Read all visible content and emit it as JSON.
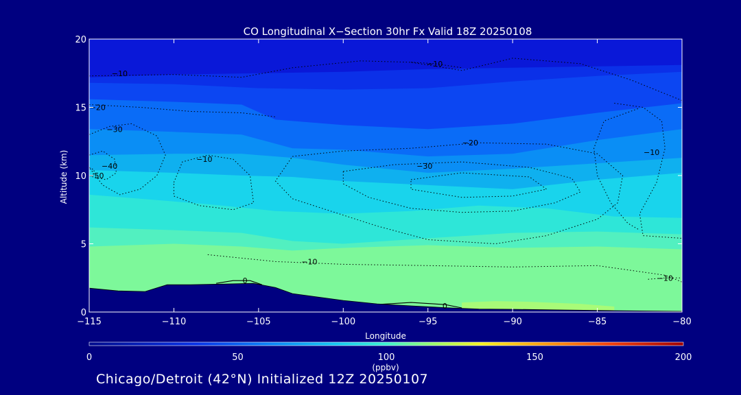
{
  "chart_data": {
    "type": "heatmap",
    "title": "CO Longitudinal X−Section 30hr  Fx Valid 18Z 20250108",
    "xlabel": "Longitude",
    "ylabel": "Altitude (km)",
    "xlim": [
      -115,
      -80
    ],
    "ylim": [
      0,
      20
    ],
    "x_ticks": [
      "−115",
      "−110",
      "−105",
      "−100",
      "−95",
      "−90",
      "−85",
      "−80"
    ],
    "y_ticks": [
      "0",
      "5",
      "10",
      "15",
      "20"
    ],
    "colorbar": {
      "label": "(ppbv)",
      "min": 0,
      "max": 200,
      "ticks": [
        "0",
        "50",
        "100",
        "150",
        "200"
      ]
    },
    "fill_layers": [
      {
        "color": "#0a18d8",
        "value": 35,
        "top": [
          [
            -115,
            20
          ],
          [
            -80,
            20
          ]
        ]
      },
      {
        "color": "#0b30e8",
        "value": 45,
        "top": [
          [
            -115,
            17.2
          ],
          [
            -110,
            17.4
          ],
          [
            -105,
            17.5
          ],
          [
            -100,
            17.6
          ],
          [
            -95,
            17.8
          ],
          [
            -90,
            17.9
          ],
          [
            -85,
            18.0
          ],
          [
            -80,
            18.1
          ]
        ]
      },
      {
        "color": "#0c46f2",
        "value": 55,
        "top": [
          [
            -115,
            16.8
          ],
          [
            -110,
            16.7
          ],
          [
            -105,
            16.4
          ],
          [
            -100,
            16.3
          ],
          [
            -95,
            16.4
          ],
          [
            -90,
            16.9
          ],
          [
            -85,
            17.3
          ],
          [
            -80,
            17.6
          ]
        ]
      },
      {
        "color": "#0a6cf7",
        "value": 65,
        "top": [
          [
            -115,
            15.6
          ],
          [
            -110,
            15.4
          ],
          [
            -106,
            15.2
          ],
          [
            -104,
            14.1
          ],
          [
            -100,
            13.7
          ],
          [
            -95,
            13.4
          ],
          [
            -90,
            13.8
          ],
          [
            -85,
            14.6
          ],
          [
            -80,
            15.3
          ]
        ]
      },
      {
        "color": "#0a8ef5",
        "value": 72,
        "top": [
          [
            -115,
            13.4
          ],
          [
            -110,
            13.2
          ],
          [
            -106,
            13.0
          ],
          [
            -103,
            12.0
          ],
          [
            -100,
            11.9
          ],
          [
            -95,
            11.4
          ],
          [
            -90,
            11.6
          ],
          [
            -85,
            12.6
          ],
          [
            -80,
            13.4
          ]
        ]
      },
      {
        "color": "#0fb0ef",
        "value": 80,
        "top": [
          [
            -115,
            11.5
          ],
          [
            -110,
            11.6
          ],
          [
            -106,
            11.6
          ],
          [
            -103,
            11.3
          ],
          [
            -100,
            10.8
          ],
          [
            -95,
            10.2
          ],
          [
            -90,
            10.5
          ],
          [
            -85,
            10.9
          ],
          [
            -80,
            11.3
          ]
        ]
      },
      {
        "color": "#19d4ec",
        "value": 88,
        "top": [
          [
            -115,
            10.4
          ],
          [
            -110,
            10.2
          ],
          [
            -106,
            10.0
          ],
          [
            -103,
            9.9
          ],
          [
            -100,
            9.6
          ],
          [
            -95,
            9.3
          ],
          [
            -90,
            9.0
          ],
          [
            -85,
            9.7
          ],
          [
            -80,
            10.2
          ]
        ]
      },
      {
        "color": "#2ee6d8",
        "value": 92,
        "top": [
          [
            -115,
            8.6
          ],
          [
            -111,
            8.2
          ],
          [
            -108,
            7.9
          ],
          [
            -104,
            7.4
          ],
          [
            -100,
            7.2
          ],
          [
            -96,
            7.4
          ],
          [
            -92,
            7.8
          ],
          [
            -88,
            7.6
          ],
          [
            -84,
            7.0
          ],
          [
            -80,
            6.9
          ]
        ]
      },
      {
        "color": "#52f0c0",
        "value": 97,
        "top": [
          [
            -115,
            6.2
          ],
          [
            -110,
            6.0
          ],
          [
            -106,
            5.8
          ],
          [
            -103,
            5.2
          ],
          [
            -100,
            5.0
          ],
          [
            -95,
            5.4
          ],
          [
            -90,
            5.8
          ],
          [
            -85,
            5.9
          ],
          [
            -80,
            5.7
          ]
        ]
      },
      {
        "color": "#7df89a",
        "value": 102,
        "top": [
          [
            -115,
            4.8
          ],
          [
            -110,
            5.0
          ],
          [
            -106,
            4.8
          ],
          [
            -103,
            4.5
          ],
          [
            -100,
            4.7
          ],
          [
            -95,
            4.9
          ],
          [
            -90,
            4.7
          ],
          [
            -85,
            4.8
          ],
          [
            -80,
            4.6
          ]
        ]
      },
      {
        "color": "#a8fb78",
        "value": 108,
        "top": [
          [
            -93,
            0.7
          ],
          [
            -91,
            0.8
          ],
          [
            -89,
            0.75
          ],
          [
            -86,
            0.6
          ],
          [
            -84,
            0.4
          ],
          [
            -84,
            0
          ],
          [
            -93,
            0
          ]
        ]
      }
    ],
    "terrain": [
      [
        -115,
        1.75
      ],
      [
        -113.3,
        1.55
      ],
      [
        -111.7,
        1.5
      ],
      [
        -110.4,
        2.0
      ],
      [
        -109,
        2.0
      ],
      [
        -107,
        2.05
      ],
      [
        -105.3,
        2.1
      ],
      [
        -104,
        1.8
      ],
      [
        -103,
        1.35
      ],
      [
        -101.5,
        1.1
      ],
      [
        -100,
        0.85
      ],
      [
        -98,
        0.6
      ],
      [
        -96,
        0.45
      ],
      [
        -94,
        0.32
      ],
      [
        -92,
        0.22
      ],
      [
        -90,
        0.2
      ],
      [
        -87,
        0.15
      ],
      [
        -84,
        0.1
      ],
      [
        -80,
        0.05
      ]
    ],
    "contours": [
      {
        "label": "−10",
        "label_at": [
          -113.2,
          17.5
        ],
        "points": [
          [
            -115,
            17.3
          ],
          [
            -110,
            17.4
          ],
          [
            -106,
            17.2
          ],
          [
            -103,
            17.9
          ],
          [
            -99,
            18.4
          ],
          [
            -96,
            18.3
          ],
          [
            -93,
            17.7
          ],
          [
            -90,
            18.6
          ],
          [
            -86,
            18.2
          ],
          [
            -83,
            17.0
          ],
          [
            -80,
            15.5
          ]
        ]
      },
      {
        "label": "−10",
        "label_at": [
          -94.6,
          18.2
        ],
        "points": [
          [
            -96,
            18.3
          ],
          [
            -94.6,
            18.2
          ],
          [
            -93,
            17.9
          ]
        ]
      },
      {
        "label": "−20",
        "label_at": [
          -114.5,
          15.0
        ],
        "points": [
          [
            -115,
            15.2
          ],
          [
            -112,
            15.0
          ],
          [
            -109,
            14.7
          ],
          [
            -106,
            14.6
          ],
          [
            -104,
            14.3
          ]
        ]
      },
      {
        "label": "−30",
        "label_at": [
          -113.5,
          13.4
        ],
        "points": [
          [
            -115,
            13.0
          ],
          [
            -113.8,
            13.6
          ],
          [
            -112.5,
            13.8
          ],
          [
            -111,
            12.9
          ],
          [
            -110.5,
            11.5
          ],
          [
            -111,
            10.0
          ],
          [
            -112,
            9.0
          ],
          [
            -113.2,
            8.6
          ],
          [
            -114.2,
            9.3
          ],
          [
            -115,
            10.6
          ]
        ]
      },
      {
        "label": "−40",
        "label_at": [
          -113.8,
          10.7
        ],
        "points": [
          [
            -115,
            11.5
          ],
          [
            -114.2,
            11.8
          ],
          [
            -113.5,
            11.2
          ],
          [
            -113.4,
            10.2
          ],
          [
            -114,
            9.7
          ],
          [
            -114.8,
            9.9
          ]
        ]
      },
      {
        "label": "−50",
        "label_at": [
          -114.6,
          10.0
        ],
        "points": [
          [
            -115,
            10.6
          ],
          [
            -114.7,
            10.4
          ],
          [
            -114.8,
            9.9
          ]
        ]
      },
      {
        "label": "−10",
        "label_at": [
          -108.2,
          11.2
        ],
        "points": [
          [
            -110,
            9.5
          ],
          [
            -109.5,
            11.0
          ],
          [
            -108,
            11.5
          ],
          [
            -106.5,
            11.2
          ],
          [
            -105.5,
            10.0
          ],
          [
            -105.3,
            8.0
          ],
          [
            -106.5,
            7.5
          ],
          [
            -108.5,
            7.8
          ],
          [
            -110,
            8.5
          ],
          [
            -110,
            9.5
          ]
        ]
      },
      {
        "label": "−20",
        "label_at": [
          -92.5,
          12.4
        ],
        "points": [
          [
            -103,
            11.4
          ],
          [
            -100,
            11.8
          ],
          [
            -96,
            12.0
          ],
          [
            -92,
            12.4
          ],
          [
            -88,
            12.3
          ],
          [
            -85,
            11.6
          ],
          [
            -83.5,
            10.0
          ],
          [
            -83.8,
            8.0
          ],
          [
            -85,
            6.8
          ],
          [
            -88,
            5.6
          ],
          [
            -91,
            5.0
          ],
          [
            -95,
            5.3
          ],
          [
            -98,
            6.3
          ],
          [
            -101,
            7.5
          ],
          [
            -103,
            8.3
          ],
          [
            -104,
            9.6
          ],
          [
            -103,
            11.4
          ]
        ]
      },
      {
        "label": "−30",
        "label_at": [
          -95.2,
          10.7
        ],
        "points": [
          [
            -100,
            10.3
          ],
          [
            -97,
            10.8
          ],
          [
            -93,
            11.0
          ],
          [
            -89,
            10.6
          ],
          [
            -86.5,
            9.8
          ],
          [
            -86,
            8.8
          ],
          [
            -87.5,
            8.0
          ],
          [
            -90,
            7.4
          ],
          [
            -93,
            7.3
          ],
          [
            -96,
            7.6
          ],
          [
            -98.5,
            8.4
          ],
          [
            -100,
            9.4
          ],
          [
            -100,
            10.3
          ]
        ]
      },
      {
        "label": "",
        "label_at": [
          -91,
          9.6
        ],
        "points": [
          [
            -96,
            9.7
          ],
          [
            -93,
            10.2
          ],
          [
            -89,
            9.9
          ],
          [
            -88,
            9.0
          ],
          [
            -90,
            8.5
          ],
          [
            -93,
            8.4
          ],
          [
            -96,
            9.0
          ],
          [
            -96,
            9.7
          ]
        ]
      },
      {
        "label": "−10",
        "label_at": [
          -102,
          3.7
        ],
        "points": [
          [
            -108,
            4.2
          ],
          [
            -104,
            3.7
          ],
          [
            -100,
            3.5
          ],
          [
            -95,
            3.4
          ],
          [
            -90,
            3.3
          ],
          [
            -85,
            3.4
          ],
          [
            -81,
            2.7
          ],
          [
            -80,
            2.2
          ]
        ]
      },
      {
        "label": "−10",
        "label_at": [
          -81,
          2.5
        ],
        "points": [
          [
            -82,
            2.4
          ],
          [
            -81,
            2.5
          ],
          [
            -80,
            2.5
          ]
        ]
      },
      {
        "label": "−10",
        "label_at": [
          -81.8,
          11.7
        ],
        "points": [
          [
            -84,
            15.3
          ],
          [
            -82.3,
            15.0
          ],
          [
            -81.2,
            14.0
          ],
          [
            -81.0,
            12.0
          ],
          [
            -81.5,
            9.5
          ],
          [
            -82.5,
            7.2
          ],
          [
            -82.3,
            5.6
          ],
          [
            -80,
            5.4
          ]
        ]
      },
      {
        "label": "",
        "label_at": [
          -86,
          10
        ],
        "points": [
          [
            -82.6,
            14.9
          ],
          [
            -84.6,
            14.0
          ],
          [
            -85.2,
            12.0
          ],
          [
            -85.0,
            10.0
          ],
          [
            -84.2,
            8.0
          ],
          [
            -83.2,
            6.5
          ],
          [
            -82.5,
            6.0
          ]
        ]
      },
      {
        "label": "0",
        "label_at": [
          -105.8,
          2.3
        ],
        "points": [
          [
            -107.5,
            2.1
          ],
          [
            -106.5,
            2.3
          ],
          [
            -105.5,
            2.3
          ],
          [
            -104.8,
            2.0
          ]
        ]
      },
      {
        "label": "0",
        "label_at": [
          -94,
          0.45
        ],
        "points": [
          [
            -98,
            0.55
          ],
          [
            -96,
            0.7
          ],
          [
            -94,
            0.55
          ],
          [
            -93,
            0.3
          ]
        ]
      }
    ]
  }
}
